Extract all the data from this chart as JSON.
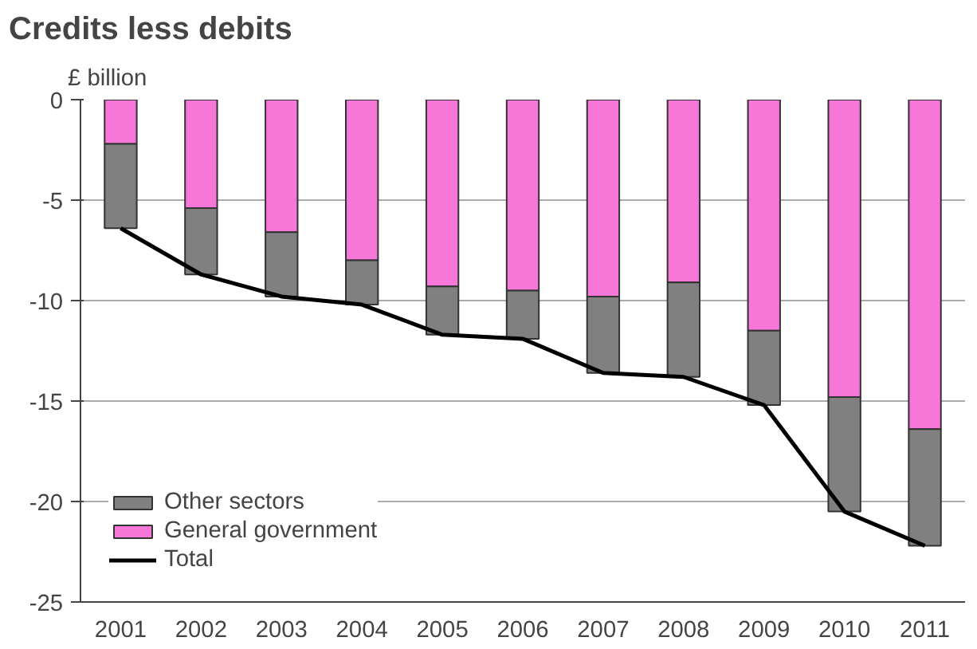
{
  "chart_data": {
    "type": "bar",
    "title": "Credits less debits",
    "ylabel": "£ billion",
    "stacked": true,
    "categories": [
      "2001",
      "2002",
      "2003",
      "2004",
      "2005",
      "2006",
      "2007",
      "2008",
      "2009",
      "2010",
      "2011"
    ],
    "series": [
      {
        "name": "General government",
        "color": "#f777d9",
        "values": [
          -2.2,
          -5.4,
          -6.6,
          -8.0,
          -9.3,
          -9.5,
          -9.8,
          -9.1,
          -11.5,
          -14.8,
          -16.4
        ]
      },
      {
        "name": "Other sectors",
        "color": "#808080",
        "values": [
          -4.2,
          -3.3,
          -3.2,
          -2.2,
          -2.4,
          -2.4,
          -3.8,
          -4.7,
          -3.7,
          -5.7,
          -5.8
        ]
      },
      {
        "name": "Total",
        "type": "line",
        "color": "#000000",
        "values": [
          -6.4,
          -8.7,
          -9.8,
          -10.2,
          -11.7,
          -11.9,
          -13.6,
          -13.8,
          -15.2,
          -20.5,
          -22.2
        ]
      }
    ],
    "ylim": [
      -25,
      0
    ],
    "yticks": [
      0,
      -5,
      -10,
      -15,
      -20,
      -25
    ],
    "grid": "y",
    "legend": "bottom left"
  }
}
